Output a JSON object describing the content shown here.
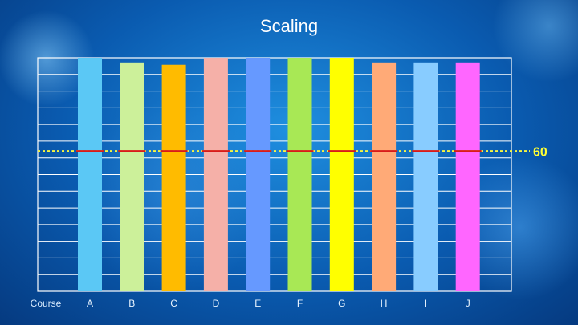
{
  "page": {
    "title": "Scaling"
  },
  "chart_data": {
    "type": "bar",
    "title": "Scaling",
    "row_label": "Course",
    "categories": [
      "A",
      "B",
      "C",
      "D",
      "E",
      "F",
      "G",
      "H",
      "I",
      "J"
    ],
    "values": [
      100,
      98,
      97,
      100,
      100,
      100,
      100,
      98,
      98,
      98
    ],
    "ylim": [
      0,
      100
    ],
    "grid": true,
    "reference_line": {
      "value": 60,
      "label": "60",
      "color": "#f5f542"
    },
    "marker_color": "#d81b1b",
    "colors": [
      "#5bc8f5",
      "#ccf09a",
      "#ffbb00",
      "#f5b0a8",
      "#6699ff",
      "#a8e855",
      "#ffff00",
      "#ffaa77",
      "#88ccff",
      "#ff66ff"
    ]
  }
}
